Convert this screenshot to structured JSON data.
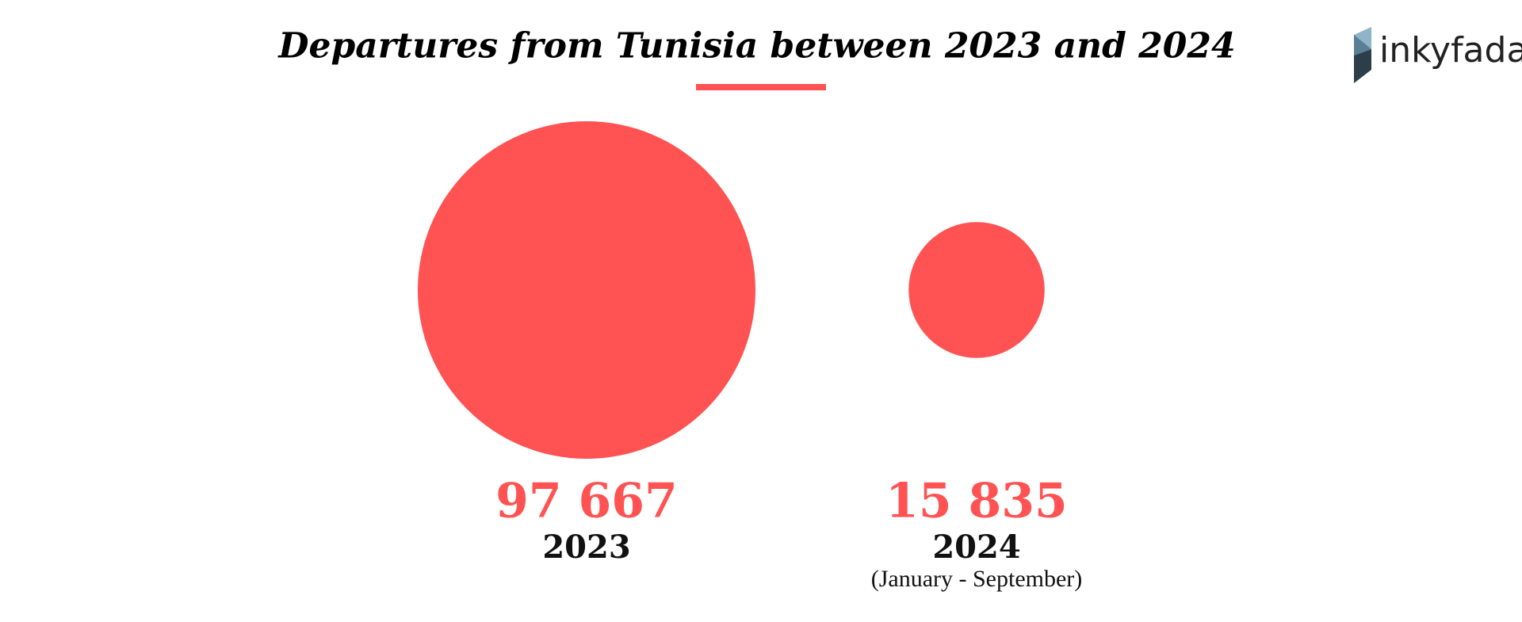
{
  "chart_data": {
    "type": "bubble",
    "title": "Departures from Tunisia between 2023 and 2024",
    "categories": [
      "2023",
      "2024"
    ],
    "values": [
      97667,
      15835
    ],
    "value_labels": [
      "97 667",
      "15 835"
    ],
    "annotation": "(January - September)",
    "color": "#ff5252"
  },
  "logo": "inkyfada"
}
